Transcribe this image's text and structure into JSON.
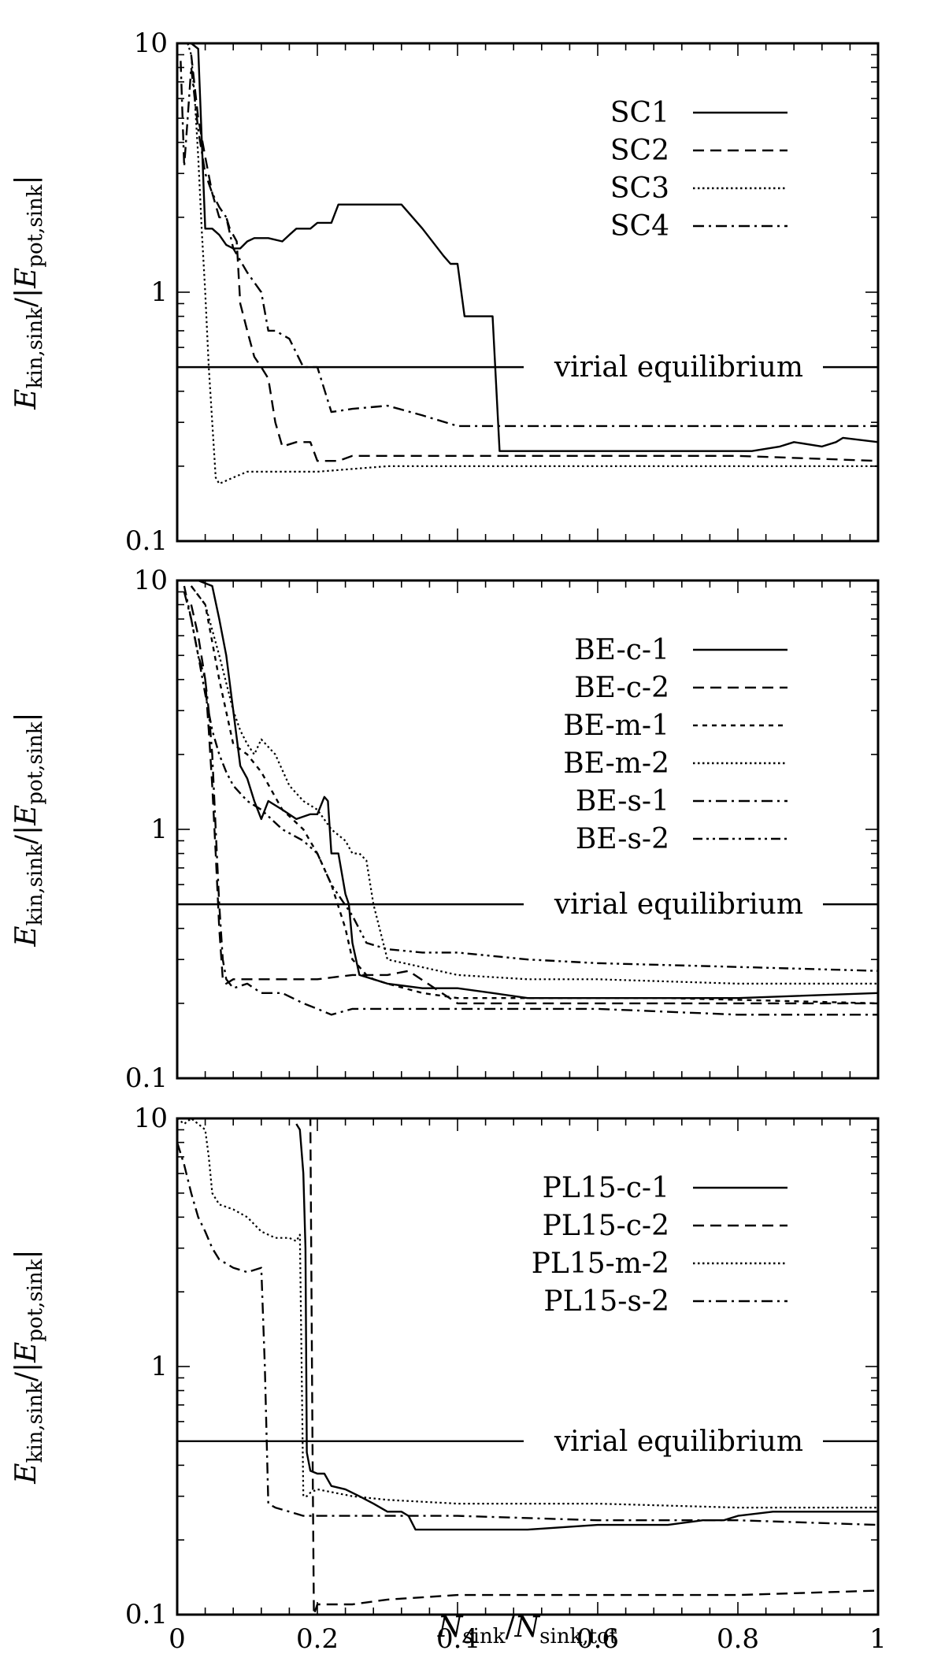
{
  "xlabel": "N_sink/N_sink,tot",
  "ylabel": "E_kin,sink/|E_pot,sink|",
  "x_ticks": [
    "0",
    "0.2",
    "0.4",
    "0.6",
    "0.8",
    "1"
  ],
  "y_ticks": [
    "0.1",
    "1",
    "10"
  ],
  "chart_data": [
    {
      "type": "line",
      "panel": "top",
      "xlim": [
        0,
        1
      ],
      "ylim": [
        0.1,
        10
      ],
      "yscale": "log",
      "reference": {
        "label": "virial equilibrium",
        "y": 0.5
      },
      "legend": "top-right",
      "series": [
        {
          "name": "SC1",
          "dash": "solid",
          "x": [
            0.02,
            0.03,
            0.04,
            0.05,
            0.06,
            0.07,
            0.08,
            0.09,
            0.1,
            0.11,
            0.13,
            0.15,
            0.16,
            0.17,
            0.19,
            0.2,
            0.22,
            0.23,
            0.25,
            0.27,
            0.3,
            0.32,
            0.35,
            0.38,
            0.39,
            0.4,
            0.41,
            0.42,
            0.44,
            0.45,
            0.46,
            0.48,
            0.55,
            0.65,
            0.75,
            0.82,
            0.86,
            0.88,
            0.92,
            0.94,
            0.95,
            1.0
          ],
          "y": [
            10,
            9.5,
            1.8,
            1.8,
            1.7,
            1.55,
            1.5,
            1.5,
            1.6,
            1.65,
            1.65,
            1.6,
            1.7,
            1.8,
            1.8,
            1.9,
            1.9,
            2.25,
            2.25,
            2.25,
            2.25,
            2.25,
            1.8,
            1.4,
            1.3,
            1.3,
            0.8,
            0.8,
            0.8,
            0.8,
            0.23,
            0.23,
            0.23,
            0.23,
            0.23,
            0.23,
            0.24,
            0.25,
            0.24,
            0.25,
            0.26,
            0.25
          ]
        },
        {
          "name": "SC2",
          "dash": "dashed",
          "x": [
            0.02,
            0.03,
            0.04,
            0.05,
            0.06,
            0.07,
            0.075,
            0.085,
            0.09,
            0.1,
            0.11,
            0.12,
            0.13,
            0.14,
            0.15,
            0.17,
            0.19,
            0.2,
            0.21,
            0.23,
            0.25,
            0.3,
            0.4,
            0.5,
            0.6,
            0.8,
            1.0
          ],
          "y": [
            9.0,
            5.0,
            3.5,
            2.5,
            2.0,
            2.0,
            1.8,
            1.6,
            0.9,
            0.7,
            0.55,
            0.5,
            0.45,
            0.3,
            0.24,
            0.25,
            0.25,
            0.21,
            0.21,
            0.21,
            0.22,
            0.22,
            0.22,
            0.22,
            0.22,
            0.22,
            0.21
          ]
        },
        {
          "name": "SC3",
          "dash": "dotted",
          "x": [
            0.015,
            0.02,
            0.025,
            0.03,
            0.035,
            0.04,
            0.045,
            0.05,
            0.055,
            0.06,
            0.08,
            0.1,
            0.15,
            0.2,
            0.3,
            0.4,
            0.5,
            0.6,
            0.8,
            1.0
          ],
          "y": [
            10,
            9.0,
            6.0,
            3.5,
            1.8,
            1.0,
            0.5,
            0.3,
            0.18,
            0.17,
            0.18,
            0.19,
            0.19,
            0.19,
            0.2,
            0.2,
            0.2,
            0.2,
            0.2,
            0.2
          ]
        },
        {
          "name": "SC4",
          "dash": "dashdot",
          "x": [
            0.005,
            0.01,
            0.015,
            0.02,
            0.03,
            0.04,
            0.05,
            0.06,
            0.07,
            0.08,
            0.1,
            0.12,
            0.13,
            0.14,
            0.16,
            0.18,
            0.2,
            0.22,
            0.25,
            0.3,
            0.35,
            0.4,
            0.45,
            0.5,
            0.6,
            0.8,
            0.9,
            1.0
          ],
          "y": [
            8.5,
            3.2,
            5.0,
            8.0,
            4.5,
            3.0,
            2.5,
            2.2,
            2.0,
            1.5,
            1.2,
            1.0,
            0.7,
            0.7,
            0.65,
            0.5,
            0.5,
            0.33,
            0.34,
            0.35,
            0.32,
            0.29,
            0.29,
            0.29,
            0.29,
            0.29,
            0.29,
            0.29
          ]
        }
      ]
    },
    {
      "type": "line",
      "panel": "middle",
      "xlim": [
        0,
        1
      ],
      "ylim": [
        0.1,
        10
      ],
      "yscale": "log",
      "reference": {
        "label": "virial equilibrium",
        "y": 0.5
      },
      "legend": "top-right",
      "series": [
        {
          "name": "BE-c-1",
          "dash": "solid",
          "x": [
            0.03,
            0.05,
            0.06,
            0.07,
            0.08,
            0.09,
            0.1,
            0.11,
            0.12,
            0.13,
            0.15,
            0.17,
            0.19,
            0.2,
            0.21,
            0.215,
            0.22,
            0.23,
            0.24,
            0.245,
            0.25,
            0.26,
            0.28,
            0.3,
            0.35,
            0.4,
            0.45,
            0.5,
            0.6,
            0.7,
            0.8,
            1.0
          ],
          "y": [
            10,
            9.5,
            7.0,
            5.0,
            3.0,
            1.8,
            1.6,
            1.3,
            1.1,
            1.3,
            1.2,
            1.1,
            1.15,
            1.15,
            1.35,
            1.3,
            0.8,
            0.8,
            0.55,
            0.5,
            0.35,
            0.26,
            0.25,
            0.24,
            0.23,
            0.23,
            0.22,
            0.21,
            0.21,
            0.21,
            0.21,
            0.22
          ]
        },
        {
          "name": "BE-c-2",
          "dash": "dashed",
          "x": [
            0.02,
            0.03,
            0.04,
            0.045,
            0.05,
            0.055,
            0.06,
            0.065,
            0.07,
            0.08,
            0.1,
            0.15,
            0.2,
            0.25,
            0.3,
            0.33,
            0.4,
            0.6,
            0.8,
            1.0
          ],
          "y": [
            8.0,
            6.0,
            4.0,
            2.5,
            1.5,
            0.8,
            0.4,
            0.25,
            0.24,
            0.25,
            0.25,
            0.25,
            0.25,
            0.26,
            0.26,
            0.27,
            0.2,
            0.2,
            0.2,
            0.2
          ]
        },
        {
          "name": "BE-m-1",
          "dash": "short-dash",
          "x": [
            0.02,
            0.04,
            0.06,
            0.08,
            0.1,
            0.12,
            0.15,
            0.18,
            0.2,
            0.22,
            0.24,
            0.25,
            0.26,
            0.27,
            0.28,
            0.3,
            0.35,
            0.4,
            0.5,
            0.7,
            1.0
          ],
          "y": [
            9.5,
            8.0,
            4.0,
            2.2,
            2.0,
            1.7,
            1.2,
            1.0,
            0.8,
            0.6,
            0.4,
            0.3,
            0.28,
            0.26,
            0.25,
            0.24,
            0.22,
            0.21,
            0.21,
            0.21,
            0.2
          ]
        },
        {
          "name": "BE-m-2",
          "dash": "dotted",
          "x": [
            0.02,
            0.04,
            0.06,
            0.08,
            0.09,
            0.1,
            0.11,
            0.12,
            0.14,
            0.16,
            0.18,
            0.2,
            0.22,
            0.24,
            0.25,
            0.26,
            0.27,
            0.28,
            0.3,
            0.4,
            0.5,
            0.6,
            0.8,
            1.0
          ],
          "y": [
            9.5,
            8.0,
            5.0,
            3.0,
            2.5,
            2.2,
            2.0,
            2.3,
            2.0,
            1.5,
            1.3,
            1.2,
            1.0,
            0.9,
            0.8,
            0.8,
            0.75,
            0.5,
            0.3,
            0.26,
            0.25,
            0.25,
            0.24,
            0.24
          ]
        },
        {
          "name": "BE-s-1",
          "dash": "dashdot",
          "x": [
            0.01,
            0.02,
            0.03,
            0.04,
            0.045,
            0.05,
            0.055,
            0.06,
            0.065,
            0.07,
            0.08,
            0.1,
            0.12,
            0.15,
            0.18,
            0.2,
            0.22,
            0.25,
            0.3,
            0.4,
            0.6,
            0.8,
            1.0
          ],
          "y": [
            9.0,
            7.0,
            5.0,
            4.0,
            3.0,
            2.0,
            1.0,
            0.5,
            0.3,
            0.25,
            0.23,
            0.24,
            0.22,
            0.22,
            0.2,
            0.19,
            0.18,
            0.19,
            0.19,
            0.19,
            0.19,
            0.18,
            0.18
          ]
        },
        {
          "name": "BE-s-2",
          "dash": "dash-dot-dot",
          "x": [
            0.01,
            0.02,
            0.03,
            0.04,
            0.05,
            0.06,
            0.07,
            0.08,
            0.1,
            0.12,
            0.15,
            0.18,
            0.2,
            0.22,
            0.25,
            0.27,
            0.3,
            0.35,
            0.4,
            0.5,
            0.6,
            0.8,
            1.0
          ],
          "y": [
            9.5,
            7.0,
            5.0,
            3.5,
            2.5,
            2.0,
            1.7,
            1.5,
            1.3,
            1.2,
            1.0,
            0.9,
            0.8,
            0.6,
            0.45,
            0.35,
            0.33,
            0.32,
            0.32,
            0.3,
            0.29,
            0.28,
            0.27
          ]
        }
      ]
    },
    {
      "type": "line",
      "panel": "bottom",
      "xlim": [
        0,
        1
      ],
      "ylim": [
        0.1,
        10
      ],
      "yscale": "log",
      "reference": {
        "label": "virial equilibrium",
        "y": 0.5
      },
      "legend": "top-right",
      "series": [
        {
          "name": "PL15-c-1",
          "dash": "solid",
          "x": [
            0.17,
            0.175,
            0.18,
            0.183,
            0.185,
            0.19,
            0.2,
            0.21,
            0.22,
            0.24,
            0.26,
            0.28,
            0.3,
            0.32,
            0.33,
            0.34,
            0.36,
            0.4,
            0.5,
            0.6,
            0.7,
            0.75,
            0.78,
            0.8,
            0.85,
            0.9,
            1.0
          ],
          "y": [
            9.5,
            9.0,
            6.0,
            3.0,
            0.45,
            0.38,
            0.37,
            0.37,
            0.33,
            0.32,
            0.3,
            0.28,
            0.26,
            0.26,
            0.25,
            0.22,
            0.22,
            0.22,
            0.22,
            0.23,
            0.23,
            0.24,
            0.24,
            0.25,
            0.26,
            0.26,
            0.26
          ]
        },
        {
          "name": "PL15-c-2",
          "dash": "dashed",
          "x": [
            0.185,
            0.19,
            0.193,
            0.195,
            0.2,
            0.21,
            0.25,
            0.3,
            0.4,
            0.6,
            0.8,
            1.0
          ],
          "y": [
            10,
            10,
            0.5,
            0.1,
            0.11,
            0.11,
            0.11,
            0.115,
            0.12,
            0.12,
            0.12,
            0.125
          ]
        },
        {
          "name": "PL15-m-2",
          "dash": "dotted",
          "x": [
            0.0,
            0.01,
            0.02,
            0.03,
            0.04,
            0.045,
            0.05,
            0.06,
            0.08,
            0.1,
            0.12,
            0.14,
            0.16,
            0.17,
            0.175,
            0.18,
            0.185,
            0.19,
            0.2,
            0.25,
            0.3,
            0.4,
            0.6,
            0.8,
            1.0
          ],
          "y": [
            10,
            9.5,
            10,
            9.5,
            9.0,
            7.0,
            5.0,
            4.5,
            4.3,
            4.0,
            3.5,
            3.3,
            3.3,
            3.2,
            3.4,
            0.3,
            0.3,
            0.31,
            0.32,
            0.3,
            0.29,
            0.28,
            0.28,
            0.27,
            0.27
          ]
        },
        {
          "name": "PL15-s-2",
          "dash": "dashdot",
          "x": [
            0.0,
            0.01,
            0.02,
            0.03,
            0.04,
            0.05,
            0.06,
            0.08,
            0.1,
            0.12,
            0.125,
            0.13,
            0.14,
            0.16,
            0.18,
            0.2,
            0.25,
            0.3,
            0.4,
            0.6,
            0.8,
            1.0
          ],
          "y": [
            8.0,
            6.5,
            5.0,
            4.0,
            3.5,
            3.0,
            2.7,
            2.5,
            2.4,
            2.5,
            1.0,
            0.28,
            0.27,
            0.26,
            0.25,
            0.25,
            0.25,
            0.25,
            0.25,
            0.24,
            0.24,
            0.23
          ]
        }
      ]
    }
  ]
}
